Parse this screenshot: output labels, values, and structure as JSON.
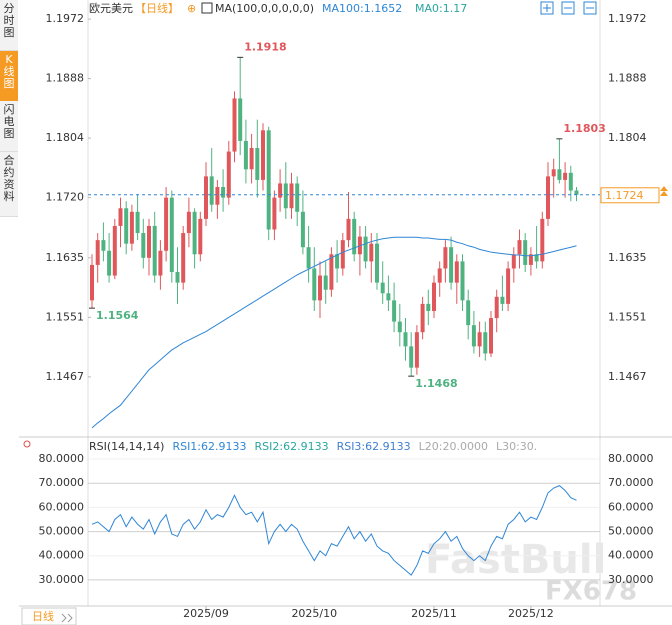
{
  "sidebar_tabs": [
    "分时图",
    "K线图",
    "闪电图",
    "合约资料"
  ],
  "bottom_tab": "日线",
  "watermark": {
    "brand": "FastBull",
    "site": "FX678"
  },
  "chart_data": [
    {
      "type": "candlestick",
      "header": {
        "symbol": "欧元美元",
        "period": "【日线】",
        "indicator": "MA(100,0,0,0,0,0)",
        "legend": [
          "MA100:1.1652",
          "MA0:1.17"
        ]
      },
      "up_color": "#e0575b",
      "down_color": "#4fb381",
      "ylim": [
        1.1392,
        1.1982
      ],
      "yticks": [
        1.1972,
        1.1888,
        1.1804,
        {
          "value": 1.172,
          "label": "1.1720"
        },
        1.1635,
        1.1551,
        1.1467
      ],
      "grid": false,
      "open": [
        1.1575,
        1.1625,
        1.166,
        1.1645,
        1.161,
        1.168,
        1.1705,
        1.1655,
        1.17,
        1.167,
        1.1635,
        1.168,
        1.161,
        1.1645,
        1.172,
        1.1615,
        1.16,
        1.167,
        1.17,
        1.164,
        1.169,
        1.175,
        1.171,
        1.1735,
        1.172,
        1.1785,
        1.186,
        1.18,
        1.176,
        1.179,
        1.1745,
        1.1815,
        1.1675,
        1.172,
        1.174,
        1.1705,
        1.174,
        1.17,
        1.165,
        1.162,
        1.1575,
        1.161,
        1.159,
        1.164,
        1.162,
        1.166,
        1.169,
        1.164,
        1.1665,
        1.163,
        1.1655,
        1.16,
        1.1585,
        1.1575,
        1.1545,
        1.153,
        1.151,
        1.148,
        1.153,
        1.157,
        1.156,
        1.16,
        1.162,
        1.165,
        1.16,
        1.163,
        1.1575,
        1.154,
        1.151,
        1.153,
        1.15,
        1.155,
        1.158,
        1.157,
        1.162,
        1.164,
        1.166,
        1.1625,
        1.164,
        1.163,
        1.169,
        1.175,
        1.176,
        1.1745,
        1.1755,
        1.173
      ],
      "high": [
        1.164,
        1.167,
        1.1685,
        1.167,
        1.169,
        1.172,
        1.1715,
        1.171,
        1.1725,
        1.169,
        1.169,
        1.17,
        1.166,
        1.1735,
        1.173,
        1.165,
        1.168,
        1.172,
        1.1705,
        1.17,
        1.177,
        1.179,
        1.1745,
        1.176,
        1.18,
        1.187,
        1.1918,
        1.183,
        1.181,
        1.183,
        1.1825,
        1.182,
        1.173,
        1.176,
        1.177,
        1.1755,
        1.175,
        1.173,
        1.168,
        1.165,
        1.163,
        1.163,
        1.165,
        1.166,
        1.167,
        1.1728,
        1.17,
        1.168,
        1.168,
        1.167,
        1.167,
        1.163,
        1.161,
        1.16,
        1.157,
        1.155,
        1.153,
        1.154,
        1.158,
        1.159,
        1.161,
        1.163,
        1.166,
        1.1665,
        1.164,
        1.164,
        1.159,
        1.156,
        1.1545,
        1.1545,
        1.156,
        1.159,
        1.161,
        1.163,
        1.165,
        1.1675,
        1.167,
        1.165,
        1.168,
        1.17,
        1.177,
        1.1775,
        1.1803,
        1.177,
        1.1765,
        1.1735
      ],
      "low": [
        1.1564,
        1.16,
        1.163,
        1.16,
        1.1605,
        1.165,
        1.164,
        1.1645,
        1.166,
        1.162,
        1.161,
        1.16,
        1.159,
        1.163,
        1.16,
        1.157,
        1.159,
        1.165,
        1.162,
        1.163,
        1.168,
        1.17,
        1.169,
        1.17,
        1.171,
        1.177,
        1.178,
        1.174,
        1.174,
        1.172,
        1.173,
        1.166,
        1.166,
        1.17,
        1.169,
        1.169,
        1.168,
        1.164,
        1.16,
        1.156,
        1.155,
        1.157,
        1.158,
        1.16,
        1.161,
        1.165,
        1.163,
        1.161,
        1.162,
        1.16,
        1.159,
        1.157,
        1.156,
        1.153,
        1.151,
        1.149,
        1.1468,
        1.147,
        1.152,
        1.154,
        1.155,
        1.158,
        1.16,
        1.159,
        1.157,
        1.156,
        1.152,
        1.15,
        1.1495,
        1.149,
        1.1495,
        1.153,
        1.156,
        1.156,
        1.16,
        1.162,
        1.1615,
        1.161,
        1.162,
        1.162,
        1.168,
        1.172,
        1.174,
        1.172,
        1.1715,
        1.1715
      ],
      "close": [
        1.1625,
        1.166,
        1.1645,
        1.161,
        1.168,
        1.1705,
        1.1655,
        1.17,
        1.167,
        1.1635,
        1.168,
        1.161,
        1.1645,
        1.172,
        1.1615,
        1.16,
        1.167,
        1.17,
        1.164,
        1.169,
        1.175,
        1.171,
        1.1735,
        1.172,
        1.1785,
        1.186,
        1.18,
        1.176,
        1.179,
        1.1745,
        1.1815,
        1.1675,
        1.172,
        1.174,
        1.1705,
        1.174,
        1.17,
        1.165,
        1.162,
        1.1575,
        1.161,
        1.159,
        1.164,
        1.162,
        1.166,
        1.169,
        1.164,
        1.1665,
        1.163,
        1.1655,
        1.16,
        1.1585,
        1.1575,
        1.1545,
        1.153,
        1.151,
        1.148,
        1.153,
        1.157,
        1.156,
        1.16,
        1.162,
        1.165,
        1.16,
        1.163,
        1.1575,
        1.154,
        1.151,
        1.153,
        1.15,
        1.155,
        1.158,
        1.157,
        1.162,
        1.164,
        1.166,
        1.1625,
        1.164,
        1.163,
        1.169,
        1.175,
        1.176,
        1.1745,
        1.1755,
        1.173,
        1.1724
      ],
      "series": [
        {
          "color": "#2f86d6",
          "values": [
            1.1395,
            1.1402,
            1.1408,
            1.1415,
            1.1421,
            1.1427,
            1.1437,
            1.1447,
            1.1457,
            1.1467,
            1.1477,
            1.1484,
            1.1491,
            1.1498,
            1.1505,
            1.151,
            1.1515,
            1.1519,
            1.1523,
            1.1527,
            1.1531,
            1.1536,
            1.1541,
            1.1546,
            1.1551,
            1.1556,
            1.1561,
            1.1566,
            1.1571,
            1.1576,
            1.1581,
            1.1586,
            1.1591,
            1.1596,
            1.1601,
            1.1606,
            1.1611,
            1.1615,
            1.1619,
            1.1623,
            1.1627,
            1.1631,
            1.1635,
            1.1639,
            1.1643,
            1.1646,
            1.1649,
            1.1652,
            1.1655,
            1.1658,
            1.166,
            1.1662,
            1.1663,
            1.1664,
            1.1664,
            1.1664,
            1.1664,
            1.1664,
            1.1663,
            1.1663,
            1.1662,
            1.1661,
            1.1661,
            1.166,
            1.1657,
            1.1655,
            1.1652,
            1.165,
            1.1647,
            1.1645,
            1.1643,
            1.1642,
            1.1641,
            1.164,
            1.1639,
            1.1639,
            1.1638,
            1.1638,
            1.1639,
            1.164,
            1.1642,
            1.1644,
            1.1646,
            1.1648,
            1.165,
            1.1652
          ]
        }
      ]
    },
    {
      "type": "line",
      "legend": [
        "RSI(14,14,14)",
        "RSI1:62.9133",
        "RSI2:62.9133",
        "RSI3:62.9133",
        "L20:20.0000",
        "L30:30."
      ],
      "legend_colors": [
        "#333333",
        "#2f86d6",
        "#2aa6a0",
        "#3f7fd0",
        "#aaaaaa",
        "#aaaaaa"
      ],
      "categories": [
        null,
        null,
        null,
        null,
        null,
        null,
        null,
        null,
        null,
        null,
        null,
        null,
        null,
        null,
        null,
        null,
        null,
        null,
        null,
        null,
        "2025/09",
        null,
        null,
        null,
        null,
        null,
        null,
        null,
        null,
        null,
        null,
        null,
        null,
        null,
        null,
        null,
        null,
        null,
        null,
        "2025/10",
        null,
        null,
        null,
        null,
        null,
        null,
        null,
        null,
        null,
        null,
        null,
        null,
        null,
        null,
        null,
        null,
        null,
        null,
        null,
        null,
        "2025/11",
        null,
        null,
        null,
        null,
        null,
        null,
        null,
        null,
        null,
        null,
        null,
        null,
        null,
        null,
        null,
        null,
        "2025/12",
        null,
        null,
        null,
        null,
        null,
        null,
        null,
        null
      ],
      "ylim": [
        21.7,
        85.8
      ],
      "yticks": [
        {
          "value": 80,
          "label": "80.0000"
        },
        {
          "value": 70,
          "label": "70.0000"
        },
        {
          "value": 60,
          "label": "60.0000"
        },
        {
          "value": 50,
          "label": "50.0000"
        },
        {
          "value": 40,
          "label": "40.0000"
        },
        {
          "value": 30,
          "label": "30.0000"
        }
      ],
      "grid": true,
      "series": [
        {
          "color": "#2f86d6",
          "values": [
            53,
            54,
            52,
            50,
            55,
            57,
            52,
            56,
            53,
            51,
            55,
            49,
            54,
            57,
            49,
            48,
            53,
            55,
            51,
            54,
            59,
            55,
            57,
            56,
            60,
            65,
            60,
            57,
            58,
            54,
            58,
            45,
            50,
            53,
            50,
            53,
            51,
            46,
            42,
            38,
            42,
            40,
            45,
            44,
            48,
            52,
            47,
            50,
            46,
            49,
            44,
            42,
            41,
            38,
            36,
            34,
            32,
            36,
            42,
            41,
            45,
            47,
            50,
            46,
            48,
            43,
            40,
            38,
            40,
            38,
            44,
            48,
            47,
            53,
            55,
            58,
            54,
            56,
            55,
            60,
            66,
            68,
            69,
            67,
            64,
            62.9133
          ]
        }
      ]
    }
  ]
}
